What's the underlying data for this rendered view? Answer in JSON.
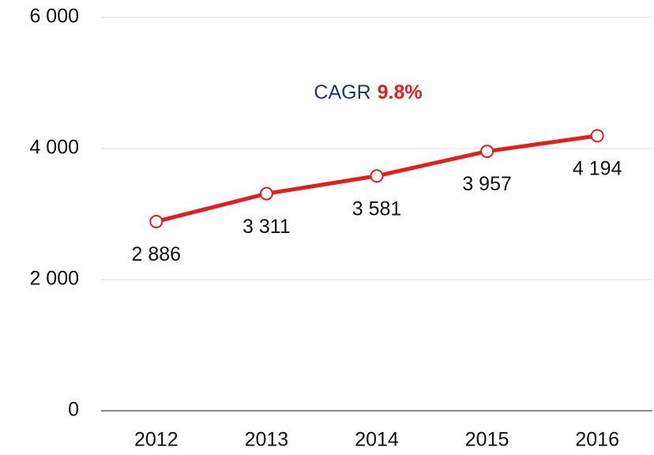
{
  "chart_data": {
    "type": "line",
    "categories": [
      "2012",
      "2013",
      "2014",
      "2015",
      "2016"
    ],
    "values": [
      2886,
      3311,
      3581,
      3957,
      4194
    ],
    "value_labels": [
      "2 886",
      "3 311",
      "3 581",
      "3 957",
      "4 194"
    ],
    "color": "#e02020",
    "ylim": [
      0,
      6000
    ],
    "yticks": [
      {
        "value": 0,
        "label": "0"
      },
      {
        "value": 2000,
        "label": "2 000"
      },
      {
        "value": 4000,
        "label": "4 000"
      },
      {
        "value": 6000,
        "label": "6 000"
      }
    ],
    "grid": true,
    "annotation": {
      "text": "CAGR",
      "highlight": "9.8%"
    }
  }
}
